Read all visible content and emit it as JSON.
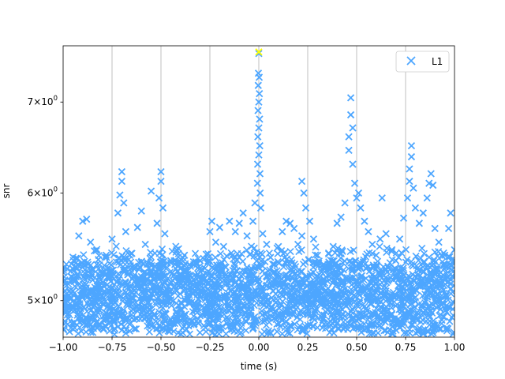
{
  "chart_data": {
    "type": "scatter",
    "title": "",
    "xlabel": "time (s)",
    "ylabel": "snr",
    "xlim": [
      -1.0,
      1.0
    ],
    "ylim": [
      4.7,
      7.7
    ],
    "yscale": "log",
    "grid": "vertical lines only",
    "legend_placement": "top-right",
    "x_ticks": [
      {
        "value": -1.0,
        "label": "−1.00"
      },
      {
        "value": -0.75,
        "label": "−0.75"
      },
      {
        "value": -0.5,
        "label": "−0.50"
      },
      {
        "value": -0.25,
        "label": "−0.25"
      },
      {
        "value": 0.0,
        "label": "0.00"
      },
      {
        "value": 0.25,
        "label": "0.25"
      },
      {
        "value": 0.5,
        "label": "0.50"
      },
      {
        "value": 0.75,
        "label": "0.75"
      },
      {
        "value": 1.0,
        "label": "1.00"
      }
    ],
    "y_ticks": [
      {
        "value": 5,
        "mant": "5",
        "exp": "0"
      },
      {
        "value": 6,
        "mant": "6",
        "exp": "0"
      },
      {
        "value": 7,
        "mant": "7",
        "exp": "0"
      }
    ],
    "series": [
      {
        "name": "L1",
        "color": "#4da6ff",
        "marker": "x",
        "points": [
          [
            -0.92,
            5.58
          ],
          [
            -0.9,
            5.72
          ],
          [
            -0.88,
            5.74
          ],
          [
            -0.86,
            5.52
          ],
          [
            -0.84,
            5.44
          ],
          [
            -0.82,
            5.36
          ],
          [
            -0.78,
            5.4
          ],
          [
            -0.75,
            5.55
          ],
          [
            -0.72,
            5.8
          ],
          [
            -0.7,
            6.22
          ],
          [
            -0.7,
            6.12
          ],
          [
            -0.71,
            5.98
          ],
          [
            -0.69,
            5.9
          ],
          [
            -0.68,
            5.62
          ],
          [
            -0.66,
            5.4
          ],
          [
            -0.64,
            5.3
          ],
          [
            -0.62,
            5.66
          ],
          [
            -0.6,
            5.82
          ],
          [
            -0.58,
            5.5
          ],
          [
            -0.55,
            6.02
          ],
          [
            -0.52,
            5.7
          ],
          [
            -0.5,
            6.22
          ],
          [
            -0.5,
            6.12
          ],
          [
            -0.51,
            5.95
          ],
          [
            -0.49,
            5.85
          ],
          [
            -0.48,
            5.6
          ],
          [
            -0.45,
            5.35
          ],
          [
            -0.42,
            5.45
          ],
          [
            -0.4,
            5.28
          ],
          [
            -0.38,
            5.4
          ],
          [
            -0.35,
            5.22
          ],
          [
            -0.3,
            5.35
          ],
          [
            -0.25,
            5.62
          ],
          [
            -0.24,
            5.72
          ],
          [
            -0.22,
            5.52
          ],
          [
            -0.2,
            5.66
          ],
          [
            -0.18,
            5.48
          ],
          [
            -0.15,
            5.72
          ],
          [
            -0.12,
            5.62
          ],
          [
            -0.1,
            5.7
          ],
          [
            -0.08,
            5.8
          ],
          [
            -0.06,
            5.58
          ],
          [
            -0.03,
            5.72
          ],
          [
            -0.02,
            5.9
          ],
          [
            0.0,
            7.6
          ],
          [
            -0.002,
            7.35
          ],
          [
            0.002,
            7.3
          ],
          [
            -0.003,
            7.2
          ],
          [
            0.003,
            7.1
          ],
          [
            0.0,
            7.0
          ],
          [
            -0.004,
            6.9
          ],
          [
            0.004,
            6.8
          ],
          [
            0.0,
            6.7
          ],
          [
            -0.005,
            6.6
          ],
          [
            0.005,
            6.5
          ],
          [
            0.0,
            6.4
          ],
          [
            -0.006,
            6.3
          ],
          [
            0.006,
            6.2
          ],
          [
            -0.007,
            6.1
          ],
          [
            0.007,
            6.0
          ],
          [
            0.01,
            5.85
          ],
          [
            0.02,
            5.6
          ],
          [
            0.04,
            5.5
          ],
          [
            0.06,
            5.38
          ],
          [
            0.08,
            5.25
          ],
          [
            0.1,
            5.48
          ],
          [
            0.12,
            5.62
          ],
          [
            0.14,
            5.72
          ],
          [
            0.16,
            5.7
          ],
          [
            0.18,
            5.65
          ],
          [
            0.2,
            5.5
          ],
          [
            0.22,
            5.58
          ],
          [
            0.22,
            6.12
          ],
          [
            0.23,
            6.0
          ],
          [
            0.24,
            5.85
          ],
          [
            0.26,
            5.72
          ],
          [
            0.28,
            5.55
          ],
          [
            0.3,
            5.4
          ],
          [
            0.32,
            5.25
          ],
          [
            0.35,
            5.3
          ],
          [
            0.38,
            5.48
          ],
          [
            0.4,
            5.7
          ],
          [
            0.42,
            5.76
          ],
          [
            0.44,
            5.9
          ],
          [
            0.46,
            6.6
          ],
          [
            0.46,
            6.45
          ],
          [
            0.47,
            7.05
          ],
          [
            0.47,
            6.85
          ],
          [
            0.48,
            6.7
          ],
          [
            0.48,
            6.3
          ],
          [
            0.49,
            6.1
          ],
          [
            0.5,
            5.95
          ],
          [
            0.51,
            6.0
          ],
          [
            0.52,
            5.85
          ],
          [
            0.54,
            5.72
          ],
          [
            0.56,
            5.62
          ],
          [
            0.58,
            5.5
          ],
          [
            0.6,
            5.4
          ],
          [
            0.62,
            5.55
          ],
          [
            0.63,
            5.95
          ],
          [
            0.65,
            5.6
          ],
          [
            0.68,
            5.45
          ],
          [
            0.7,
            5.35
          ],
          [
            0.72,
            5.55
          ],
          [
            0.74,
            5.75
          ],
          [
            0.76,
            5.95
          ],
          [
            0.77,
            6.12
          ],
          [
            0.78,
            6.5
          ],
          [
            0.78,
            6.38
          ],
          [
            0.77,
            6.25
          ],
          [
            0.79,
            6.05
          ],
          [
            0.8,
            5.85
          ],
          [
            0.82,
            5.7
          ],
          [
            0.84,
            5.8
          ],
          [
            0.86,
            5.95
          ],
          [
            0.87,
            6.1
          ],
          [
            0.88,
            6.2
          ],
          [
            0.89,
            6.08
          ],
          [
            0.9,
            5.65
          ],
          [
            0.92,
            5.52
          ],
          [
            0.95,
            5.4
          ],
          [
            0.97,
            5.65
          ],
          [
            0.98,
            5.8
          ],
          [
            1.0,
            5.45
          ]
        ]
      },
      {
        "name": "",
        "color": "#ffff00",
        "marker": "x",
        "points": [
          [
            0.0,
            7.62
          ]
        ]
      }
    ]
  }
}
